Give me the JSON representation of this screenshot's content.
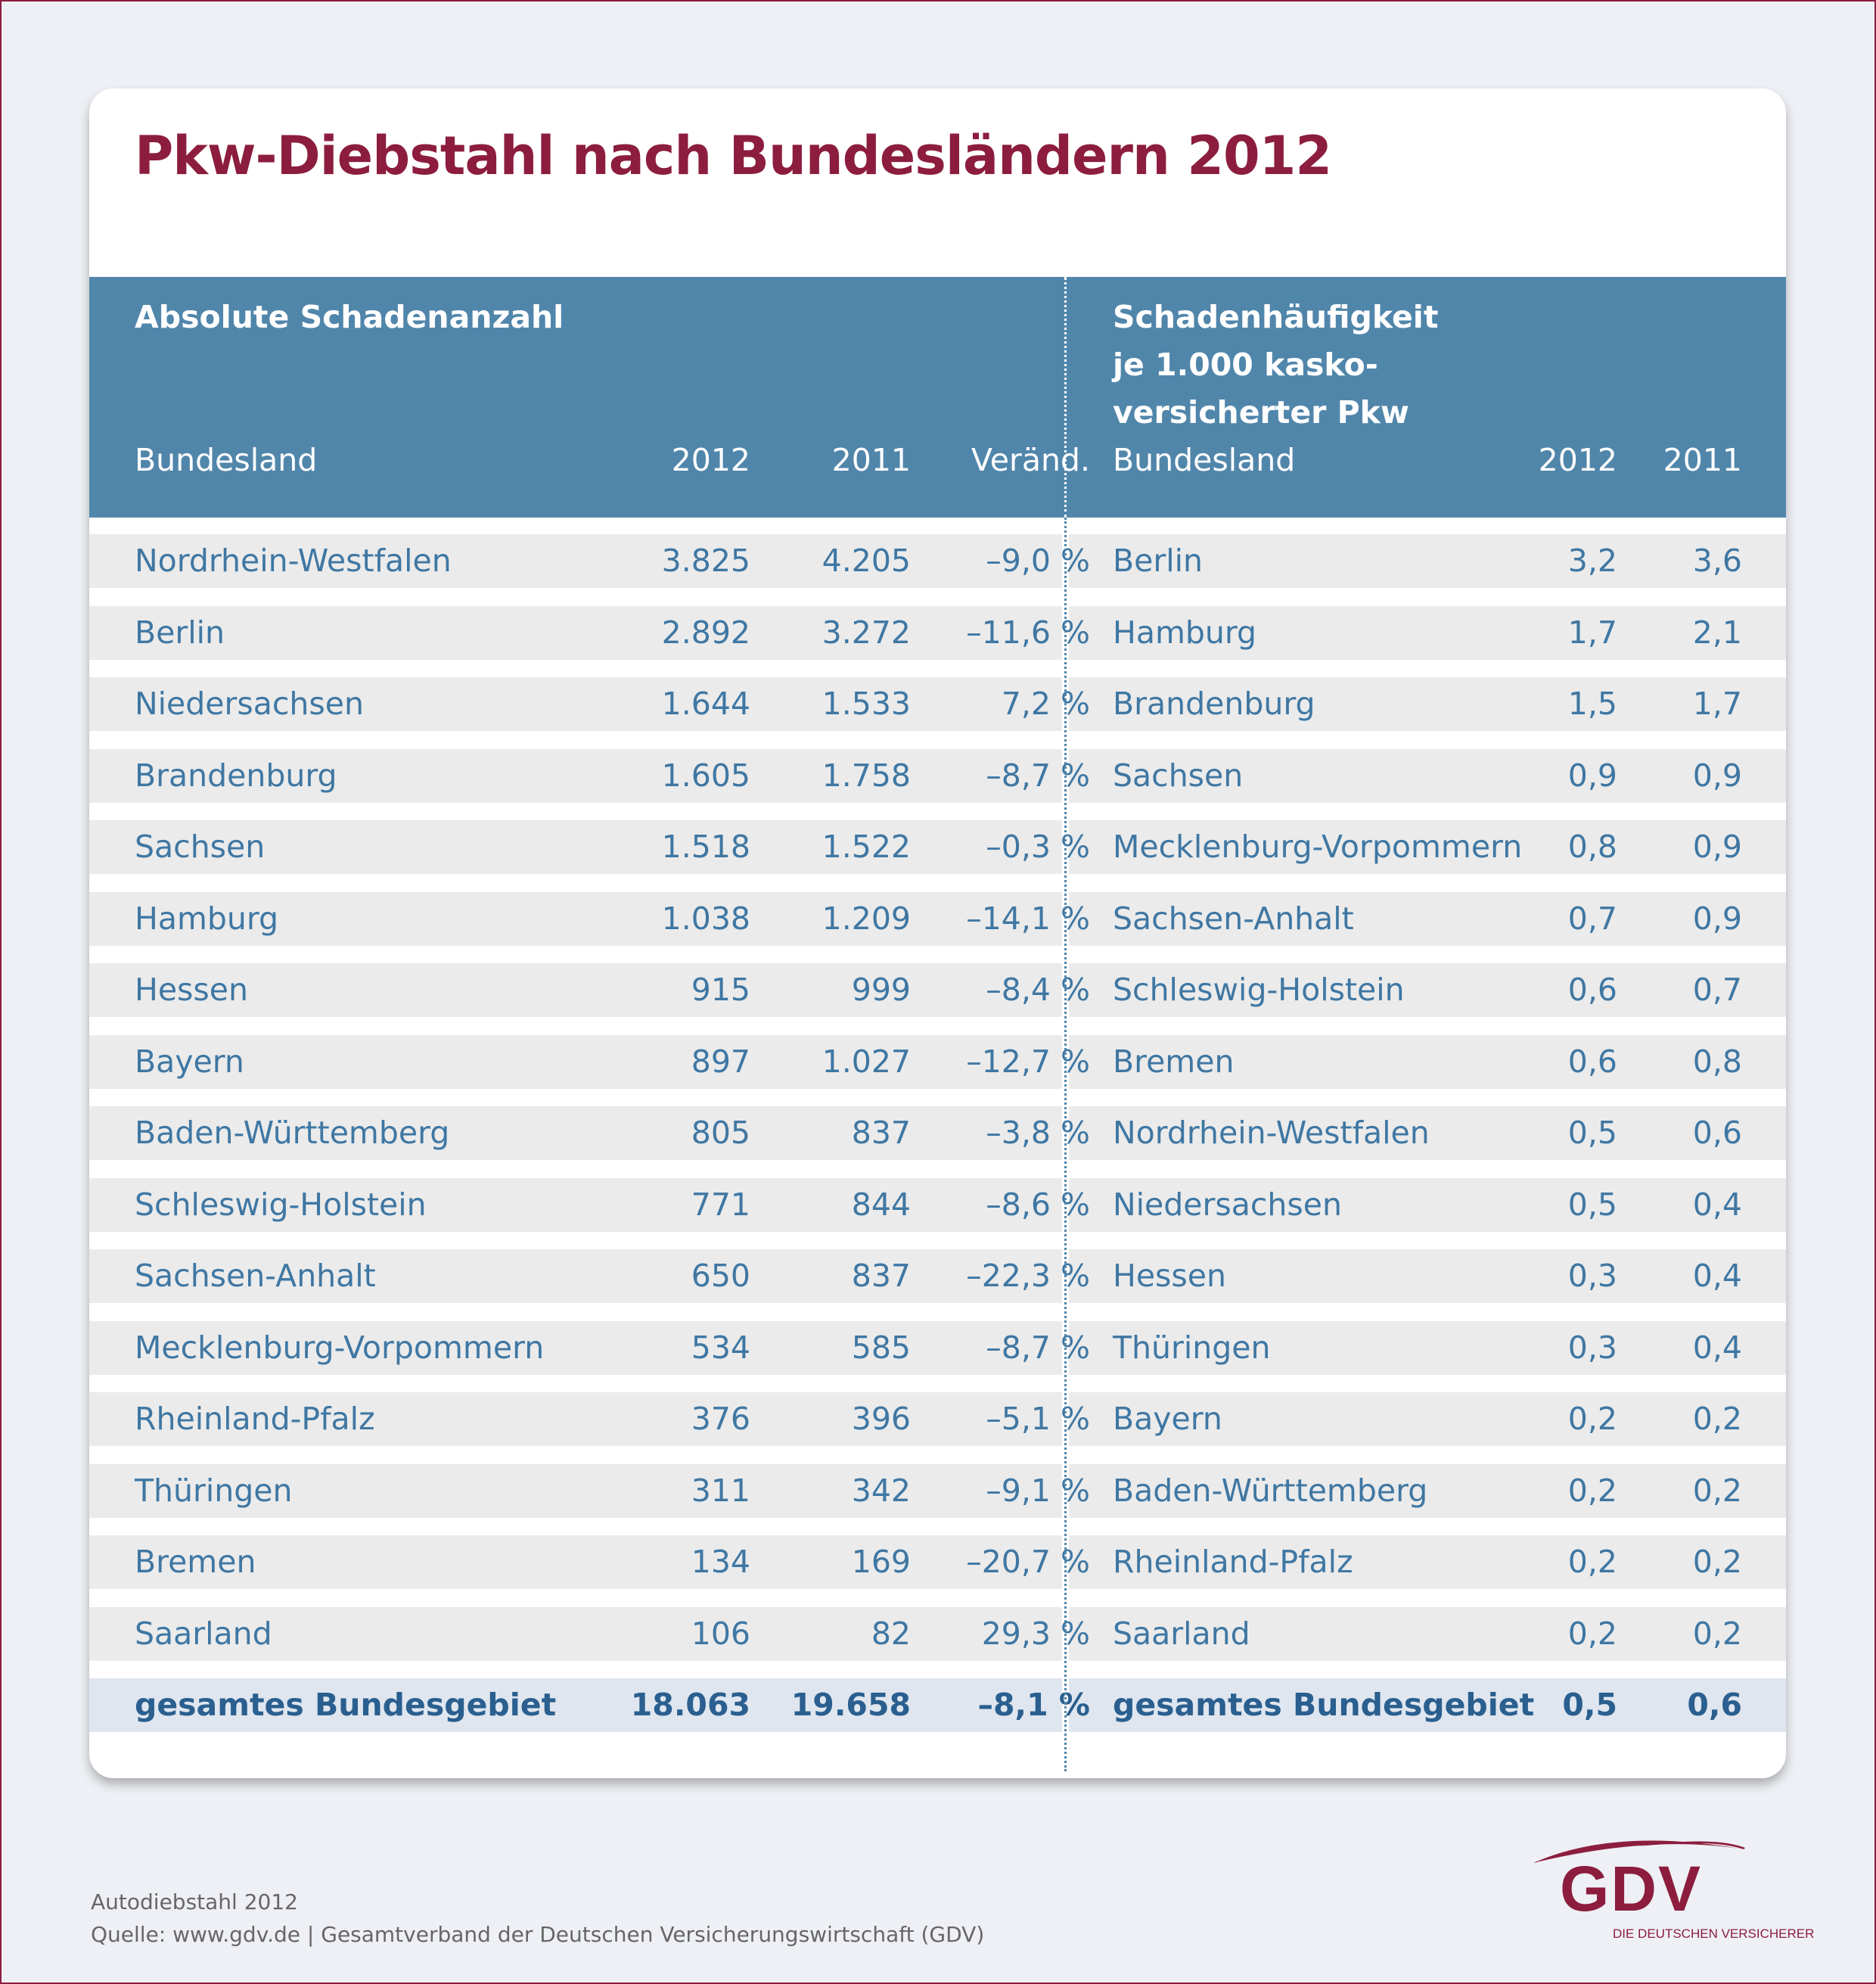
{
  "title": "Pkw-Diebstahl nach Bundesländern 2012",
  "left_table": {
    "section_title": "Absolute Schadenanzahl",
    "columns": [
      "Bundesland",
      "2012",
      "2011",
      "Veränd."
    ],
    "rows": [
      [
        "Nordrhein-Westfalen",
        "3.825",
        "4.205",
        "–9,0 %"
      ],
      [
        "Berlin",
        "2.892",
        "3.272",
        "–11,6 %"
      ],
      [
        "Niedersachsen",
        "1.644",
        "1.533",
        "7,2 %"
      ],
      [
        "Brandenburg",
        "1.605",
        "1.758",
        "–8,7 %"
      ],
      [
        "Sachsen",
        "1.518",
        "1.522",
        "–0,3 %"
      ],
      [
        "Hamburg",
        "1.038",
        "1.209",
        "–14,1 %"
      ],
      [
        "Hessen",
        "915",
        "999",
        "–8,4 %"
      ],
      [
        "Bayern",
        "897",
        "1.027",
        "–12,7 %"
      ],
      [
        "Baden-Württemberg",
        "805",
        "837",
        "–3,8 %"
      ],
      [
        "Schleswig-Holstein",
        "771",
        "844",
        "–8,6 %"
      ],
      [
        "Sachsen-Anhalt",
        "650",
        "837",
        "–22,3 %"
      ],
      [
        "Mecklenburg-Vorpommern",
        "534",
        "585",
        "–8,7 %"
      ],
      [
        "Rheinland-Pfalz",
        "376",
        "396",
        "–5,1 %"
      ],
      [
        "Thüringen",
        "311",
        "342",
        "–9,1 %"
      ],
      [
        "Bremen",
        "134",
        "169",
        "–20,7 %"
      ],
      [
        "Saarland",
        "106",
        "82",
        "29,3 %"
      ]
    ],
    "total": [
      "gesamtes Bundesgebiet",
      "18.063",
      "19.658",
      "–8,1 %"
    ]
  },
  "right_table": {
    "section_title_lines": [
      "Schadenhäufigkeit",
      "je 1.000 kasko-",
      "versicherter Pkw"
    ],
    "columns": [
      "Bundesland",
      "2012",
      "2011"
    ],
    "rows": [
      [
        "Berlin",
        "3,2",
        "3,6"
      ],
      [
        "Hamburg",
        "1,7",
        "2,1"
      ],
      [
        "Brandenburg",
        "1,5",
        "1,7"
      ],
      [
        "Sachsen",
        "0,9",
        "0,9"
      ],
      [
        "Mecklenburg-Vorpommern",
        "0,8",
        "0,9"
      ],
      [
        "Sachsen-Anhalt",
        "0,7",
        "0,9"
      ],
      [
        "Schleswig-Holstein",
        "0,6",
        "0,7"
      ],
      [
        "Bremen",
        "0,6",
        "0,8"
      ],
      [
        "Nordrhein-Westfalen",
        "0,5",
        "0,6"
      ],
      [
        "Niedersachsen",
        "0,5",
        "0,4"
      ],
      [
        "Hessen",
        "0,3",
        "0,4"
      ],
      [
        "Thüringen",
        "0,3",
        "0,4"
      ],
      [
        "Bayern",
        "0,2",
        "0,2"
      ],
      [
        "Baden-Württemberg",
        "0,2",
        "0,2"
      ],
      [
        "Rheinland-Pfalz",
        "0,2",
        "0,2"
      ],
      [
        "Saarland",
        "0,2",
        "0,2"
      ]
    ],
    "total": [
      "gesamtes Bundesgebiet",
      "0,5",
      "0,6"
    ]
  },
  "footer": {
    "line1": "Autodiebstahl 2012",
    "line2": "Quelle: www.gdv.de | Gesamtverband der Deutschen Versicherungswirtschaft (GDV)"
  },
  "logo": {
    "text": "GDV",
    "tagline": "DIE DEUTSCHEN VERSICHERER",
    "color": "#8c1d3e"
  },
  "colors": {
    "brand": "#8c1d3e",
    "header": "#5186ab",
    "text": "#3f77a3",
    "row_stripe": "#ebebeb",
    "total_row": "#dfe6ef"
  }
}
